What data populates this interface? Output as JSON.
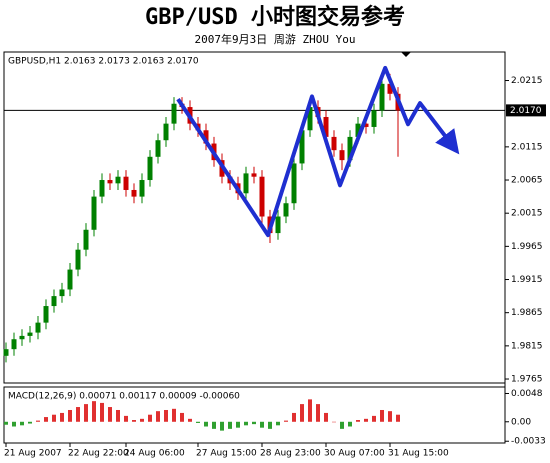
{
  "chart_data": {
    "type": "candlestick",
    "title": "GBP/USD 小时图交易参考",
    "subtitle": "2007年9月3日   周游 ZHOU You",
    "symbol_info": "GBPUSD,H1  2.0163 2.0173 2.0163 2.0170",
    "indicator_info": "MACD(12,26,9) 0.00071 0.00117 0.00009 -0.00060",
    "categories": [
      "21 Aug 2007",
      null,
      null,
      null,
      null,
      null,
      null,
      null,
      "22 Aug 22:00",
      null,
      null,
      null,
      null,
      null,
      null,
      "24 Aug 06:00",
      null,
      null,
      null,
      null,
      null,
      null,
      null,
      null,
      "27 Aug 15:00",
      null,
      null,
      null,
      null,
      null,
      null,
      null,
      "28 Aug 23:00",
      null,
      null,
      null,
      null,
      null,
      null,
      null,
      "30 Aug 07:00",
      null,
      null,
      null,
      null,
      null,
      null,
      null,
      "31 Aug 15:00",
      null
    ],
    "open": [
      1.98,
      1.981,
      1.9825,
      1.983,
      1.9835,
      1.985,
      1.9875,
      1.989,
      1.99,
      1.993,
      1.996,
      1.999,
      2.004,
      2.0065,
      2.006,
      2.007,
      2.005,
      2.004,
      2.0065,
      2.01,
      2.0125,
      2.015,
      2.018,
      2.0175,
      2.015,
      2.014,
      2.012,
      2.0095,
      2.007,
      2.006,
      2.0045,
      2.0075,
      2.007,
      2.001,
      1.9985,
      2.001,
      2.003,
      2.009,
      2.014,
      2.0175,
      2.016,
      2.013,
      2.011,
      2.0095,
      2.013,
      2.015,
      2.0145,
      2.017,
      2.021,
      2.0195
    ],
    "high": [
      1.982,
      1.9835,
      1.984,
      1.9845,
      1.986,
      1.9885,
      1.99,
      1.991,
      1.994,
      1.997,
      2.0,
      2.005,
      2.0075,
      2.0075,
      2.008,
      2.008,
      2.006,
      2.0075,
      2.011,
      2.0135,
      2.016,
      2.019,
      2.019,
      2.0185,
      2.016,
      2.015,
      2.013,
      2.0105,
      2.008,
      2.007,
      2.0085,
      2.0085,
      2.008,
      2.002,
      2.002,
      2.004,
      2.01,
      2.015,
      2.0185,
      2.0185,
      2.017,
      2.014,
      2.012,
      2.014,
      2.016,
      2.016,
      2.018,
      2.022,
      2.0225,
      2.0205
    ],
    "low": [
      1.979,
      1.98,
      1.9815,
      1.982,
      1.9825,
      1.984,
      1.9865,
      1.988,
      1.989,
      1.992,
      1.995,
      1.998,
      2.003,
      2.005,
      2.005,
      2.004,
      2.003,
      2.003,
      2.0055,
      2.009,
      2.0115,
      2.014,
      2.0165,
      2.014,
      2.013,
      2.011,
      2.0085,
      2.006,
      2.005,
      2.0035,
      2.0035,
      2.006,
      2.0,
      1.997,
      1.9975,
      2.0,
      2.002,
      2.008,
      2.013,
      2.015,
      2.012,
      2.01,
      2.008,
      2.0085,
      2.012,
      2.0135,
      2.0135,
      2.016,
      2.0185,
      2.01
    ],
    "close": [
      1.981,
      1.9825,
      1.983,
      1.9835,
      1.985,
      1.9875,
      1.989,
      1.99,
      1.993,
      1.996,
      1.999,
      2.004,
      2.0065,
      2.006,
      2.007,
      2.005,
      2.004,
      2.0065,
      2.01,
      2.0125,
      2.015,
      2.018,
      2.0175,
      2.015,
      2.014,
      2.012,
      2.0095,
      2.007,
      2.006,
      2.0045,
      2.0075,
      2.007,
      2.001,
      1.9985,
      2.001,
      2.003,
      2.009,
      2.014,
      2.0175,
      2.016,
      2.013,
      2.011,
      2.0095,
      2.013,
      2.015,
      2.0145,
      2.017,
      2.021,
      2.0195,
      2.017
    ],
    "up_color": "#008000",
    "down_color": "#cc0000",
    "xlim": [
      -0.25,
      62.375
    ],
    "ylim": [
      1.9759,
      2.0258
    ],
    "yticks": [
      2.0215,
      2.0115,
      2.0065,
      2.0015,
      1.9965,
      1.9915,
      1.9865,
      1.9815,
      1.9765
    ],
    "current_price": {
      "value": 2.017,
      "label": "2.0170"
    },
    "zigzag": {
      "color": "#1f2fd0",
      "x": [
        21.5,
        32.75,
        38.25,
        41.75,
        47.4,
        50.25,
        51.75,
        55.75
      ],
      "y": [
        2.0187,
        1.9982,
        2.0191,
        2.0057,
        2.0234,
        2.0149,
        2.0181,
        2.0118
      ]
    },
    "macd": {
      "values": [
        -0.0005,
        -0.0008,
        -0.0006,
        -0.0003,
        0.0002,
        0.0008,
        0.0012,
        0.0015,
        0.002,
        0.0025,
        0.003,
        0.0035,
        0.0032,
        0.0025,
        0.002,
        0.001,
        0.0003,
        0.0005,
        0.0012,
        0.0018,
        0.002,
        0.0022,
        0.0015,
        0.0005,
        -0.0002,
        -0.0008,
        -0.0012,
        -0.0015,
        -0.0012,
        -0.001,
        -0.0006,
        -0.0004,
        -0.001,
        -0.0012,
        -0.0006,
        0.0002,
        0.0015,
        0.003,
        0.0038,
        0.003,
        0.0015,
        0.0,
        -0.0012,
        -0.0008,
        0.0003,
        0.0005,
        0.001,
        0.002,
        0.0018,
        0.0012
      ],
      "pos_color": "#e03030",
      "neg_color": "#30a030",
      "ylim": [
        -0.0036,
        0.0059
      ],
      "yticks": [
        0.0048,
        {
          "value": 0,
          "label": "0.00"
        },
        -0.0033
      ]
    }
  }
}
